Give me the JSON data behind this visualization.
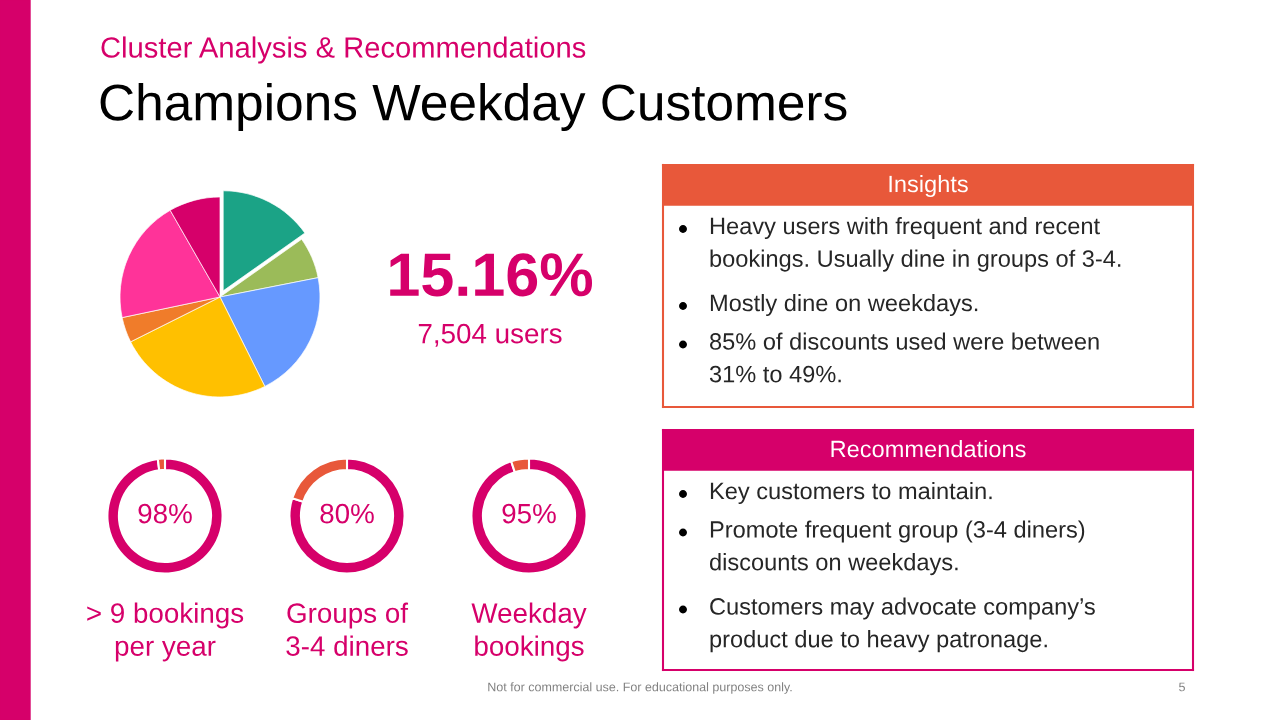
{
  "chart_data": [
    {
      "type": "pie",
      "subtitle": "Cluster Analysis & Recommendations",
      "title": "Champions Weekday Customers",
      "categories": [
        null,
        null,
        null,
        null,
        null,
        null,
        null
      ],
      "values": [
        15.2,
        6.7,
        20.7,
        25,
        4.1,
        20,
        8.3
      ],
      "colors": [
        "#1ba386",
        "#9bbb59",
        "#6699ff",
        "#ffc000",
        "#f07c2a",
        "#ff3399",
        "#d6006a"
      ],
      "annotations": [
        "15.16%",
        "7,504 users"
      ]
    },
    {
      "type": "donut",
      "xlabel": "> 9 bookings\nper year",
      "categories": [
        null,
        null
      ],
      "values": [
        98,
        2
      ],
      "colors": [
        "#d6006a",
        "#e8583a"
      ],
      "value_labels": [
        "98%",
        null
      ]
    },
    {
      "type": "donut",
      "xlabel": "Groups of\n3-4 diners",
      "categories": [
        null,
        null
      ],
      "values": [
        80,
        20
      ],
      "colors": [
        "#d6006a",
        "#e8583a"
      ],
      "value_labels": [
        "80%",
        null
      ]
    },
    {
      "type": "donut",
      "xlabel": "Weekday\nbookings",
      "categories": [
        null,
        null
      ],
      "values": [
        95,
        5
      ],
      "colors": [
        "#d6006a",
        "#e8583a"
      ],
      "value_labels": [
        "95%",
        null
      ]
    },
    {
      "type": "other",
      "title": "Insights",
      "colors": [
        "#e8583a"
      ],
      "annotations": [
        "Heavy users with frequent and recent\nbookings. Usually dine in groups of 3-4.",
        "Mostly dine on weekdays.",
        "85% of discounts used were between\n31% to 49%."
      ]
    },
    {
      "type": "other",
      "title": "Recommendations",
      "colors": [
        "#d6006a"
      ],
      "annotations": [
        "Key customers to maintain.",
        "Promote frequent group (3-4 diners)\ndiscounts on weekdays.",
        "Customers may advocate company’s\nproduct due to heavy patronage."
      ]
    },
    {
      "type": "other",
      "annotations": [
        "Not for commercial use. For educational purposes only.",
        "5"
      ]
    }
  ]
}
